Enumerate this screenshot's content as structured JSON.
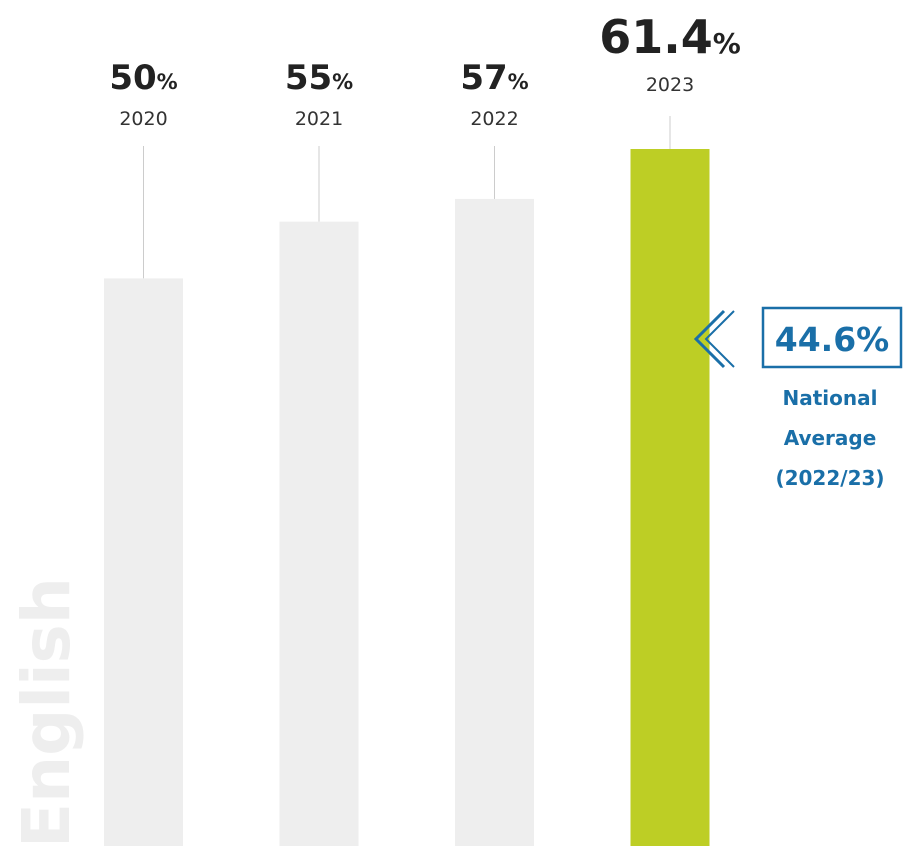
{
  "chart_data": {
    "type": "bar",
    "subject": "English",
    "categories": [
      "2020",
      "2021",
      "2022",
      "2023"
    ],
    "values": [
      50,
      55,
      57,
      61.4
    ],
    "value_labels": [
      "50",
      "55",
      "57",
      "61.4"
    ],
    "unit_symbol": "%",
    "highlight_index": 3,
    "ylim": [
      0,
      61.4
    ],
    "grid": false,
    "legend": "none",
    "reference": {
      "value": 44.6,
      "label": "44.6%",
      "caption_lines": [
        "National",
        "Average",
        "(2022/23)"
      ]
    }
  },
  "colors": {
    "bar": "#eeeeee",
    "highlight": "#bdce25",
    "reference": "#1a6fa8",
    "connector": "#cccccc",
    "subject": "#eeeeee"
  }
}
